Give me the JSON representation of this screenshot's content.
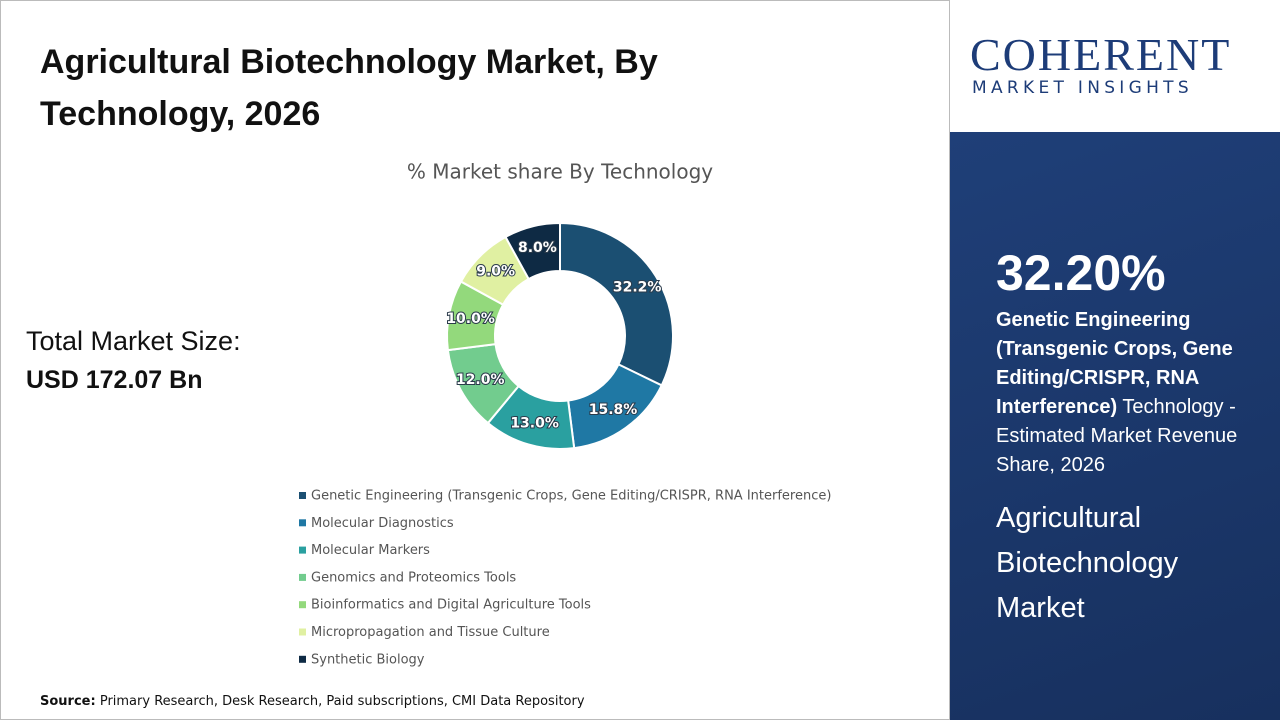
{
  "chart_data": {
    "type": "donut",
    "title": "Agricultural Biotechnology Market, By Technology, 2026",
    "subtitle": "% Market share By Technology",
    "categories": [
      "Genetic Engineering (Transgenic Crops, Gene Editing/CRISPR, RNA Interference)",
      "Molecular Diagnostics",
      "Molecular Markers",
      "Genomics and Proteomics Tools",
      "Bioinformatics and Digital Agriculture Tools",
      "Micropropagation and Tissue Culture",
      "Synthetic Biology"
    ],
    "values": [
      32.2,
      15.8,
      13.0,
      12.0,
      10.0,
      9.0,
      8.0
    ],
    "value_labels": [
      "32.2%",
      "15.8%",
      "13.0%",
      "12.0%",
      "10.0%",
      "9.0%",
      "8.0%"
    ],
    "colors": [
      "#1b4f72",
      "#1f78a4",
      "#2aa0a0",
      "#72cc8e",
      "#93d97c",
      "#e0f0a2",
      "#0e2a44"
    ]
  },
  "total_market": {
    "label": "Total Market Size:",
    "value": "USD 172.07 Bn"
  },
  "logo": {
    "name": "COHERENT",
    "tagline": "MARKET INSIGHTS"
  },
  "highlight": {
    "value": "32.20%",
    "segment": "Genetic Engineering (Transgenic Crops, Gene Editing/CRISPR, RNA Interference)",
    "description": "Technology - Estimated Market Revenue Share, 2026",
    "market": "Agricultural Biotechnology Market"
  },
  "source": {
    "label": "Source:",
    "text": "Primary Research, Desk Research, Paid subscriptions, CMI Data Repository"
  }
}
